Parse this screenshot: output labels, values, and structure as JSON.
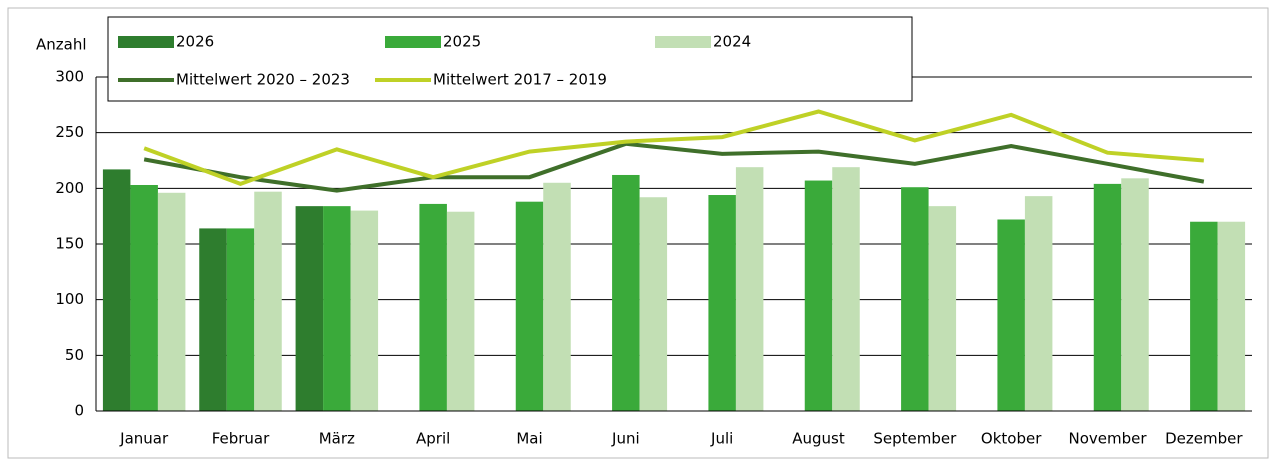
{
  "chart_data": {
    "type": "bar",
    "y_label": "Anzahl",
    "categories": [
      "Januar",
      "Februar",
      "März",
      "April",
      "Mai",
      "Juni",
      "Juli",
      "August",
      "September",
      "Oktober",
      "November",
      "Dezember"
    ],
    "series": [
      {
        "name": "2026",
        "color": "#2e7d2e",
        "values": [
          217,
          164,
          184,
          null,
          null,
          null,
          null,
          null,
          null,
          null,
          null,
          null
        ]
      },
      {
        "name": "2025",
        "color": "#3aaa3a",
        "values": [
          203,
          164,
          184,
          186,
          188,
          212,
          194,
          207,
          201,
          172,
          204,
          170
        ]
      },
      {
        "name": "2024",
        "color": "#c2dfb4",
        "values": [
          196,
          197,
          180,
          179,
          205,
          192,
          219,
          219,
          184,
          193,
          209,
          170
        ]
      },
      {
        "name": "Mittelwert 2020 – 2023",
        "type": "line",
        "color": "#3f6f2a",
        "values": [
          226,
          210,
          198,
          210,
          210,
          240,
          231,
          233,
          222,
          238,
          222,
          206
        ]
      },
      {
        "name": "Mittelwert 2017 – 2019",
        "type": "line",
        "color": "#bfd126",
        "values": [
          236,
          204,
          235,
          210,
          233,
          242,
          246,
          269,
          243,
          266,
          232,
          225
        ]
      }
    ],
    "ylim": [
      0,
      300
    ],
    "yticks": [
      0,
      50,
      100,
      150,
      200,
      250,
      300
    ],
    "grid": true
  }
}
